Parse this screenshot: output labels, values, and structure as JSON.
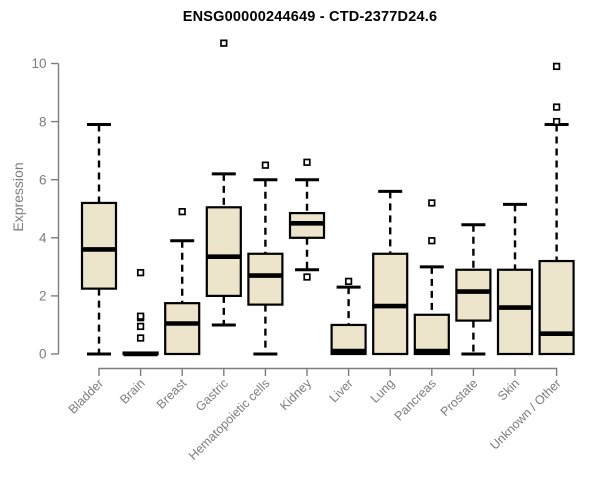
{
  "chart_data": {
    "type": "boxplot",
    "title": "ENSG00000244649 - CTD-2377D24.6",
    "xlabel": "",
    "ylabel": "Expression",
    "ylim": [
      0,
      10
    ],
    "yticks": [
      0,
      2,
      4,
      6,
      8,
      10
    ],
    "grid": false,
    "legend": false,
    "box_fill_color": "#ECE5CB",
    "box_stroke_color": "#000000",
    "axis_color": "#7d7d7d",
    "outlier_marker": "open-square",
    "categories": [
      "Bladder",
      "Brain",
      "Breast",
      "Gastric",
      "Hematopoietic cells",
      "Kidney",
      "Liver",
      "Lung",
      "Pancreas",
      "Prostate",
      "Skin",
      "Unknown / Other"
    ],
    "boxes": [
      {
        "category": "Bladder",
        "whisker_low": 0,
        "q1": 2.25,
        "median": 3.6,
        "q3": 5.2,
        "whisker_high": 7.9,
        "outliers": []
      },
      {
        "category": "Brain",
        "whisker_low": 0,
        "q1": 0,
        "median": 0,
        "q3": 0.05,
        "whisker_high": 0.05,
        "outliers": [
          0.55,
          0.95,
          1.25,
          1.3,
          2.8
        ]
      },
      {
        "category": "Breast",
        "whisker_low": 0,
        "q1": 0,
        "median": 1.05,
        "q3": 1.75,
        "whisker_high": 3.9,
        "outliers": [
          4.9
        ]
      },
      {
        "category": "Gastric",
        "whisker_low": 1.0,
        "q1": 2.0,
        "median": 3.35,
        "q3": 5.05,
        "whisker_high": 6.2,
        "outliers": [
          10.7
        ]
      },
      {
        "category": "Hematopoietic cells",
        "whisker_low": 0,
        "q1": 1.7,
        "median": 2.7,
        "q3": 3.45,
        "whisker_high": 6.0,
        "outliers": [
          6.5
        ]
      },
      {
        "category": "Kidney",
        "whisker_low": 2.9,
        "q1": 4.0,
        "median": 4.5,
        "q3": 4.85,
        "whisker_high": 6.0,
        "outliers": [
          2.65,
          6.6
        ]
      },
      {
        "category": "Liver",
        "whisker_low": 0,
        "q1": 0,
        "median": 0.1,
        "q3": 1.0,
        "whisker_high": 2.3,
        "outliers": [
          2.5
        ]
      },
      {
        "category": "Lung",
        "whisker_low": 0,
        "q1": 0,
        "median": 1.65,
        "q3": 3.45,
        "whisker_high": 5.6,
        "outliers": []
      },
      {
        "category": "Pancreas",
        "whisker_low": 0,
        "q1": 0,
        "median": 0.1,
        "q3": 1.35,
        "whisker_high": 3.0,
        "outliers": [
          3.9,
          5.2
        ]
      },
      {
        "category": "Prostate",
        "whisker_low": 0,
        "q1": 1.15,
        "median": 2.15,
        "q3": 2.9,
        "whisker_high": 4.45,
        "outliers": []
      },
      {
        "category": "Skin",
        "whisker_low": 0,
        "q1": 0,
        "median": 1.6,
        "q3": 2.9,
        "whisker_high": 5.15,
        "outliers": []
      },
      {
        "category": "Unknown / Other",
        "whisker_low": 0,
        "q1": 0,
        "median": 0.7,
        "q3": 3.2,
        "whisker_high": 7.9,
        "outliers": [
          8.0,
          8.5,
          9.9
        ]
      }
    ]
  }
}
